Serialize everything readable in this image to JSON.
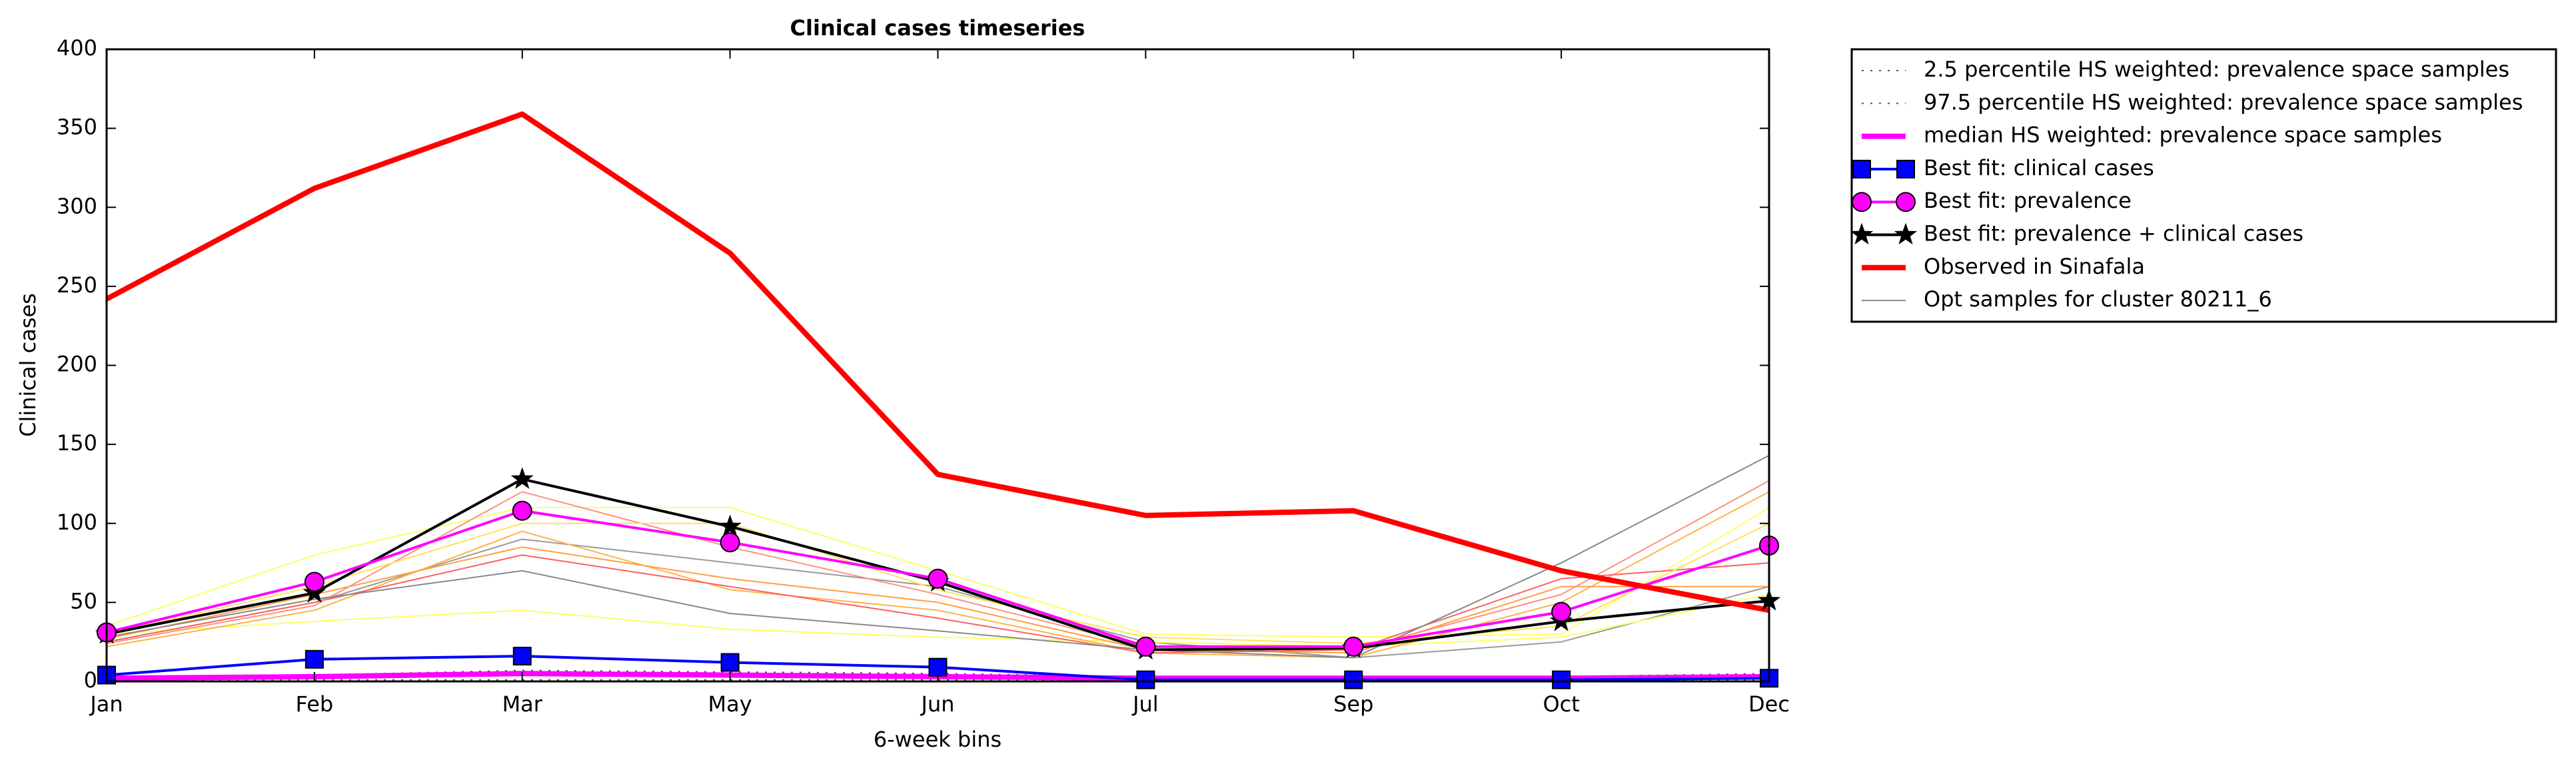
{
  "chart_data": {
    "type": "line",
    "title": "Clinical cases timeseries",
    "xlabel": "6-week bins",
    "ylabel": "Clinical cases",
    "categories": [
      "Jan",
      "Feb",
      "Mar",
      "May",
      "Jun",
      "Jul",
      "Sep",
      "Oct",
      "Dec"
    ],
    "ylim": [
      0,
      400
    ],
    "yticks": [
      0,
      50,
      100,
      150,
      200,
      250,
      300,
      350,
      400
    ],
    "legend": "outside-upper-right",
    "series": [
      {
        "name": "2.5 percentile HS weighted: prevalence space samples",
        "color": "#555555",
        "linestyle": "dotted",
        "width": 2,
        "marker": "none",
        "values": [
          0,
          1,
          1,
          1,
          1,
          0,
          0,
          0,
          1
        ]
      },
      {
        "name": "97.5 percentile HS weighted: prevalence space samples",
        "color": "#555555",
        "linestyle": "dotted",
        "width": 2,
        "marker": "none",
        "values": [
          3,
          4,
          7,
          6,
          5,
          3,
          3,
          3,
          5
        ]
      },
      {
        "name": "median HS weighted: prevalence space samples",
        "color": "#ff00ff",
        "linestyle": "solid",
        "width": 8,
        "marker": "none",
        "values": [
          2,
          3,
          5,
          4,
          3,
          2,
          2,
          2,
          3
        ]
      },
      {
        "name": "Best fit: clinical cases",
        "color": "#0000ff",
        "linestyle": "solid",
        "width": 4,
        "marker": "square",
        "values": [
          4,
          14,
          16,
          12,
          9,
          1,
          1,
          1,
          2
        ]
      },
      {
        "name": "Best fit: prevalence",
        "color": "#ff00ff",
        "linestyle": "solid",
        "width": 4,
        "marker": "circle",
        "values": [
          31,
          63,
          108,
          88,
          65,
          22,
          22,
          44,
          86
        ]
      },
      {
        "name": "Best fit: prevalence + clinical cases",
        "color": "#000000",
        "linestyle": "solid",
        "width": 4,
        "marker": "star",
        "values": [
          30,
          56,
          128,
          98,
          63,
          20,
          21,
          38,
          51
        ]
      },
      {
        "name": "Observed in Sinafala",
        "color": "#ff0000",
        "linestyle": "solid",
        "width": 8,
        "marker": "none",
        "values": [
          242,
          312,
          359,
          271,
          131,
          105,
          108,
          70,
          45
        ]
      },
      {
        "name": "Opt samples for cluster 80211_6",
        "color": "#888888",
        "linestyle": "solid",
        "width": 2,
        "marker": "none",
        "values": [
          28,
          52,
          70,
          43,
          32,
          20,
          15,
          75,
          143
        ]
      }
    ],
    "samples": [
      {
        "color": "#999999",
        "values": [
          25,
          50,
          90,
          75,
          60,
          25,
          15,
          25,
          60
        ]
      },
      {
        "color": "#ffff66",
        "values": [
          35,
          80,
          110,
          110,
          70,
          30,
          28,
          30,
          110
        ]
      },
      {
        "color": "#ffff66",
        "values": [
          30,
          38,
          45,
          33,
          28,
          25,
          22,
          28,
          55
        ]
      },
      {
        "color": "#ffb347",
        "values": [
          22,
          45,
          95,
          58,
          45,
          18,
          15,
          50,
          120
        ]
      },
      {
        "color": "#ffa040",
        "values": [
          27,
          55,
          85,
          65,
          50,
          20,
          18,
          60,
          60
        ]
      },
      {
        "color": "#ff6060",
        "values": [
          25,
          50,
          80,
          60,
          40,
          18,
          20,
          65,
          75
        ]
      },
      {
        "color": "#ff9080",
        "values": [
          24,
          48,
          120,
          85,
          55,
          22,
          20,
          55,
          127
        ]
      },
      {
        "color": "#ffe060",
        "values": [
          30,
          60,
          100,
          100,
          58,
          28,
          24,
          35,
          100
        ]
      }
    ]
  }
}
